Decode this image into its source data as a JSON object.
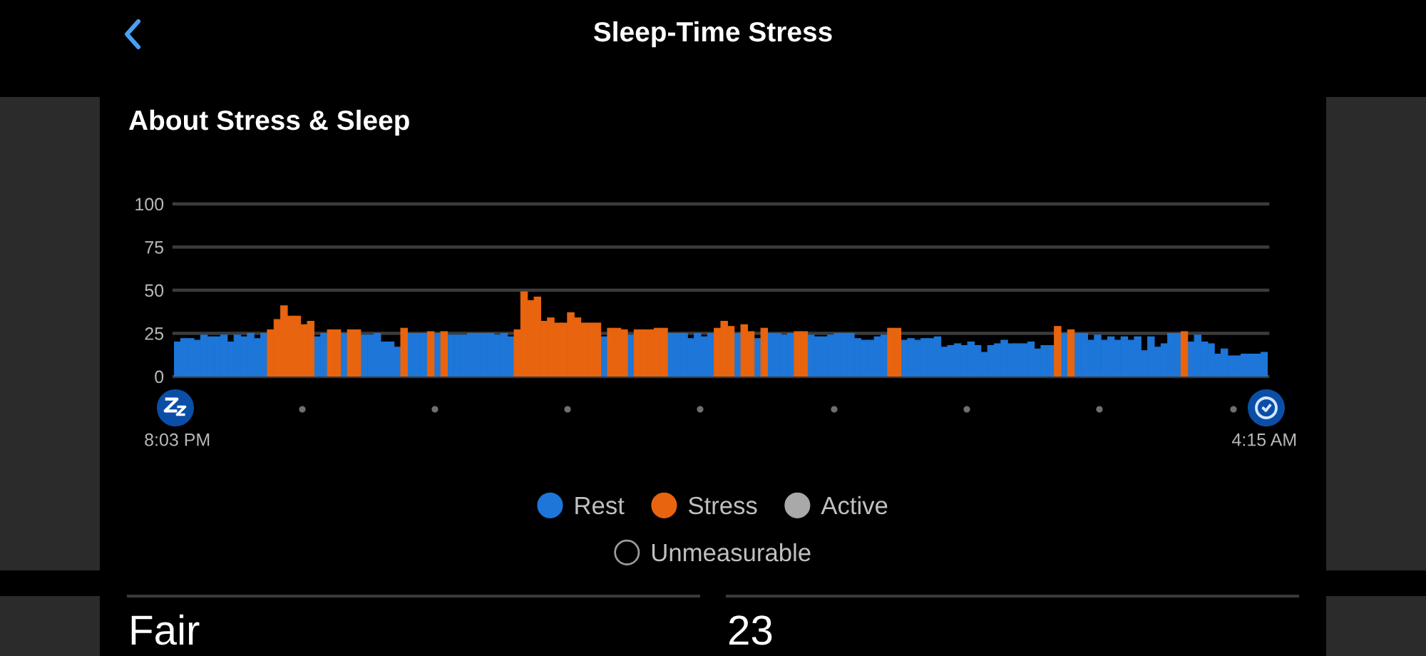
{
  "chart_data": {
    "type": "bar",
    "title": "Sleep-Time Stress",
    "subtitle": "About Stress & Sleep",
    "categories": [
      "8:03 PM",
      null,
      null,
      null,
      null,
      null,
      null,
      null,
      null,
      null,
      null,
      null,
      null,
      null,
      null,
      null,
      null,
      null,
      null,
      null,
      null,
      null,
      null,
      null,
      null,
      null,
      null,
      null,
      null,
      null,
      null,
      null,
      null,
      null,
      null,
      null,
      null,
      null,
      null,
      null,
      null,
      null,
      null,
      null,
      null,
      null,
      null,
      null,
      null,
      null,
      null,
      null,
      null,
      null,
      null,
      null,
      null,
      null,
      null,
      null,
      null,
      null,
      null,
      null,
      null,
      null,
      null,
      null,
      null,
      null,
      null,
      null,
      null,
      null,
      null,
      null,
      null,
      null,
      null,
      null,
      null,
      null,
      null,
      null,
      null,
      null,
      null,
      null,
      null,
      null,
      null,
      null,
      null,
      null,
      null,
      null,
      null,
      null,
      null,
      null,
      null,
      null,
      null,
      null,
      null,
      null,
      null,
      null,
      null,
      null,
      null,
      null,
      null,
      null,
      null,
      null,
      null,
      null,
      null,
      null,
      null,
      null,
      null,
      null,
      null,
      null,
      null,
      null,
      null,
      null,
      null,
      null,
      null,
      null,
      null,
      null,
      null,
      null,
      null,
      null,
      null,
      null,
      null,
      null,
      null,
      null,
      null,
      null,
      null,
      null,
      null,
      null,
      null,
      null,
      null,
      null,
      null,
      null,
      null,
      null,
      null,
      null,
      null,
      "4:15 AM"
    ],
    "ylim": [
      0,
      100
    ],
    "yticks": [
      0,
      25,
      50,
      75,
      100
    ],
    "grid": "y",
    "legend": "bottom",
    "series": [
      {
        "name": "Rest",
        "color": "#1d76d8",
        "values": [
          20,
          22,
          22,
          21,
          24,
          23,
          23,
          24,
          20,
          24,
          23,
          25,
          22,
          25,
          null,
          null,
          null,
          null,
          null,
          null,
          null,
          23,
          25,
          null,
          null,
          25,
          null,
          null,
          24,
          24,
          25,
          20,
          20,
          17,
          null,
          25,
          25,
          25,
          null,
          25,
          null,
          24,
          24,
          24,
          25,
          25,
          25,
          25,
          24,
          25,
          23,
          null,
          null,
          null,
          null,
          null,
          null,
          null,
          null,
          null,
          null,
          null,
          null,
          null,
          23,
          null,
          null,
          null,
          24,
          null,
          null,
          null,
          null,
          null,
          25,
          25,
          25,
          22,
          25,
          23,
          25,
          null,
          null,
          null,
          25,
          null,
          null,
          22,
          null,
          25,
          25,
          24,
          25,
          null,
          null,
          24,
          23,
          23,
          24,
          25,
          25,
          25,
          22,
          21,
          21,
          23,
          24,
          null,
          null,
          21,
          22,
          21,
          22,
          22,
          23,
          17,
          18,
          19,
          18,
          20,
          18,
          14,
          18,
          19,
          21,
          19,
          19,
          19,
          20,
          16,
          18,
          18,
          null,
          25,
          null,
          25,
          25,
          21,
          24,
          21,
          23,
          21,
          23,
          21,
          23,
          15,
          23,
          17,
          19,
          25,
          25,
          null,
          20,
          24,
          20,
          19,
          13,
          16,
          12,
          12,
          13,
          13,
          13,
          14
        ]
      },
      {
        "name": "Stress",
        "color": "#e8640f",
        "values": [
          null,
          null,
          null,
          null,
          null,
          null,
          null,
          null,
          null,
          null,
          null,
          null,
          null,
          null,
          27,
          33,
          41,
          35,
          35,
          30,
          32,
          null,
          null,
          27,
          27,
          null,
          27,
          27,
          null,
          null,
          null,
          null,
          null,
          null,
          28,
          null,
          null,
          null,
          26,
          null,
          26,
          null,
          null,
          null,
          null,
          null,
          null,
          null,
          null,
          null,
          null,
          27,
          49,
          44,
          46,
          32,
          34,
          31,
          31,
          37,
          34,
          31,
          31,
          31,
          null,
          28,
          28,
          27,
          null,
          27,
          27,
          27,
          28,
          28,
          null,
          null,
          null,
          null,
          null,
          null,
          null,
          28,
          32,
          29,
          null,
          30,
          26,
          null,
          28,
          null,
          null,
          null,
          null,
          26,
          26,
          null,
          null,
          null,
          null,
          null,
          null,
          null,
          null,
          null,
          null,
          null,
          null,
          28,
          28,
          null,
          null,
          null,
          null,
          null,
          null,
          null,
          null,
          null,
          null,
          null,
          null,
          null,
          null,
          null,
          null,
          null,
          null,
          null,
          null,
          null,
          null,
          null,
          29,
          null,
          27,
          null,
          null,
          null,
          null,
          null,
          null,
          null,
          null,
          null,
          null,
          null,
          null,
          null,
          null,
          null,
          null,
          26,
          null,
          null,
          null,
          null,
          null,
          null,
          null,
          null,
          null,
          null,
          null,
          null
        ]
      },
      {
        "name": "Active",
        "color": "#a9a9a9",
        "values": [
          null,
          null,
          null,
          null,
          null,
          null,
          null,
          null,
          null,
          null,
          null,
          null,
          null,
          null,
          null,
          null,
          null,
          null,
          null,
          null,
          null,
          null,
          null,
          null,
          null,
          null,
          null,
          null,
          null,
          null,
          null,
          null,
          null,
          null,
          null,
          null,
          null,
          null,
          null,
          null,
          null,
          null,
          null,
          null,
          null,
          null,
          null,
          null,
          null,
          null,
          null,
          null,
          null,
          null,
          null,
          null,
          null,
          null,
          null,
          null,
          null,
          null,
          null,
          null,
          null,
          null,
          null,
          null,
          null,
          null,
          null,
          null,
          null,
          null,
          null,
          null,
          null,
          null,
          null,
          null,
          null,
          null,
          null,
          null,
          null,
          null,
          null,
          null,
          null,
          null,
          null,
          null,
          null,
          null,
          null,
          null,
          null,
          null,
          null,
          null,
          null,
          null,
          null,
          null,
          null,
          null,
          null,
          null,
          null,
          null,
          null,
          null,
          null,
          null,
          null,
          null,
          null,
          null,
          null,
          null,
          null,
          null,
          null,
          null,
          null,
          null,
          null,
          null,
          null,
          null,
          null,
          null,
          null,
          null,
          null,
          null,
          null,
          null,
          null,
          null,
          null,
          null,
          null,
          null,
          null,
          null,
          null,
          null,
          null,
          null,
          null,
          null,
          null,
          null,
          null,
          null,
          null,
          null,
          null,
          null,
          null,
          null,
          null,
          null
        ]
      },
      {
        "name": "Unmeasurable",
        "color": "#000000",
        "values": [
          null,
          null,
          null,
          null,
          null,
          null,
          null,
          null,
          null,
          null,
          null,
          null,
          null,
          null,
          null,
          null,
          null,
          null,
          null,
          null,
          null,
          null,
          null,
          null,
          null,
          null,
          null,
          null,
          null,
          null,
          null,
          null,
          null,
          null,
          null,
          null,
          null,
          null,
          null,
          null,
          null,
          null,
          null,
          null,
          null,
          null,
          null,
          null,
          null,
          null,
          null,
          null,
          null,
          null,
          null,
          null,
          null,
          null,
          null,
          null,
          null,
          null,
          null,
          null,
          null,
          null,
          null,
          null,
          null,
          null,
          null,
          null,
          null,
          null,
          null,
          null,
          null,
          null,
          null,
          null,
          null,
          null,
          null,
          null,
          null,
          null,
          null,
          null,
          null,
          null,
          null,
          null,
          null,
          null,
          null,
          null,
          null,
          null,
          null,
          null,
          null,
          null,
          null,
          null,
          null,
          null,
          null,
          null,
          null,
          null,
          null,
          null,
          null,
          null,
          null,
          null,
          null,
          null,
          null,
          null,
          null,
          null,
          null,
          null,
          null,
          null,
          null,
          null,
          null,
          null,
          null,
          null,
          null,
          null,
          null,
          null,
          null,
          null,
          null,
          null,
          null,
          null,
          null,
          null,
          null,
          null,
          null,
          null,
          null,
          null,
          null,
          null,
          null,
          null,
          null,
          null,
          null,
          null,
          null,
          null,
          null,
          null,
          null,
          null
        ]
      }
    ],
    "annotations": [
      "Fair",
      "23"
    ]
  }
}
